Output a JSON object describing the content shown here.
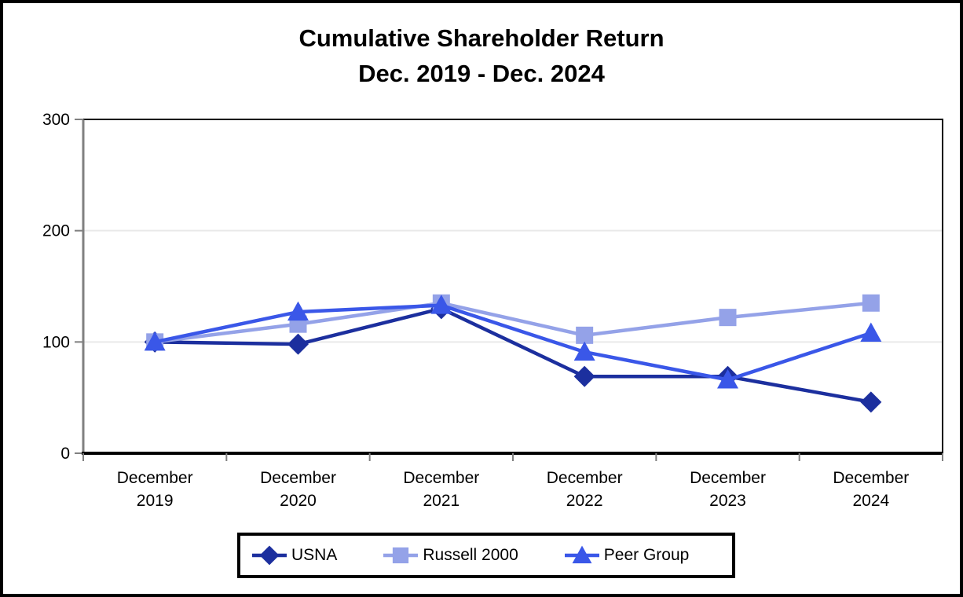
{
  "figure": {
    "title_line1": "Cumulative Shareholder Return",
    "title_line2": "Dec. 2019 - Dec. 2024"
  },
  "chart_data": {
    "type": "line",
    "title": "Cumulative Shareholder Return Dec. 2019 - Dec. 2024",
    "xlabel": "",
    "ylabel": "",
    "categories": [
      "December\n2019",
      "December\n2020",
      "December\n2021",
      "December\n2022",
      "December\n2023",
      "December\n2024"
    ],
    "series": [
      {
        "name": "USNA",
        "marker": "diamond",
        "color": "#1c2f9e",
        "values": [
          100,
          98,
          130,
          69,
          69,
          46
        ]
      },
      {
        "name": "Russell 2000",
        "marker": "square",
        "color": "#94a2e8",
        "values": [
          100,
          116,
          135,
          106,
          122,
          135
        ]
      },
      {
        "name": "Peer Group",
        "marker": "triangle",
        "color": "#3a57e8",
        "values": [
          100,
          127,
          133,
          91,
          66,
          108
        ]
      }
    ],
    "ylim": [
      0,
      300
    ],
    "yticks": [
      0,
      100,
      200,
      300
    ],
    "grid": "horizontal-light",
    "legend_position": "bottom",
    "colors": {
      "gridline": "#e9e9e9",
      "y_axis": "#808080",
      "x_axis": "#000000",
      "plot_border": "#000000"
    }
  }
}
